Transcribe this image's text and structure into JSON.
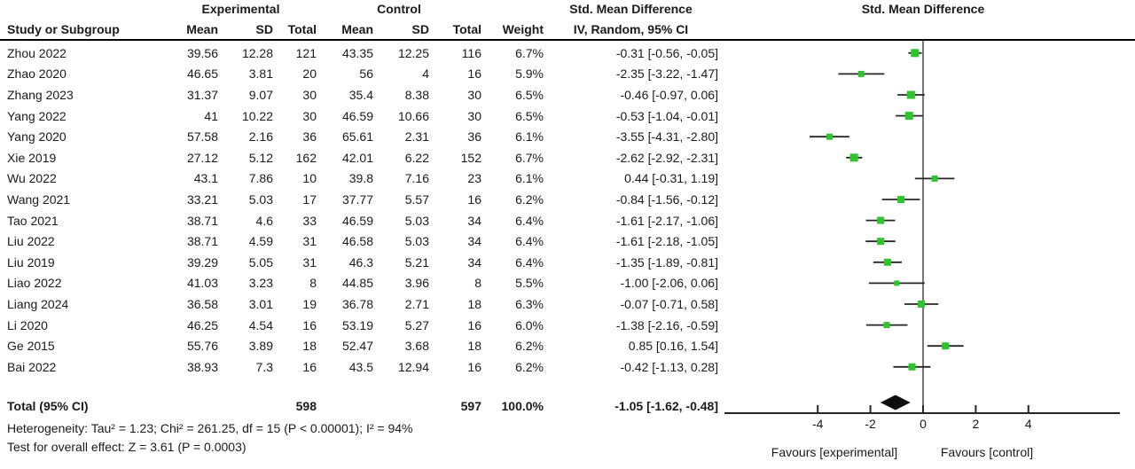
{
  "chart_data": {
    "type": "scatter",
    "subtype": "forest-plot-meta-analysis",
    "header": {
      "experimental": "Experimental",
      "control": "Control",
      "smd": "Std. Mean Difference",
      "method": "IV, Random, 95% CI",
      "cols": {
        "study": "Study or Subgroup",
        "mean": "Mean",
        "sd": "SD",
        "total": "Total",
        "weight": "Weight"
      }
    },
    "studies": [
      {
        "name": "Zhou 2022",
        "exp_mean": "39.56",
        "exp_sd": "12.28",
        "exp_total": "121",
        "ctl_mean": "43.35",
        "ctl_sd": "12.25",
        "ctl_total": "116",
        "weight": "6.7%",
        "ci_text": "-0.31 [-0.56, -0.05]",
        "est": -0.31,
        "lo": -0.56,
        "hi": -0.05,
        "weight_pct": 6.7
      },
      {
        "name": "Zhao 2020",
        "exp_mean": "46.65",
        "exp_sd": "3.81",
        "exp_total": "20",
        "ctl_mean": "56",
        "ctl_sd": "4",
        "ctl_total": "16",
        "weight": "5.9%",
        "ci_text": "-2.35 [-3.22, -1.47]",
        "est": -2.35,
        "lo": -3.22,
        "hi": -1.47,
        "weight_pct": 5.9
      },
      {
        "name": "Zhang 2023",
        "exp_mean": "31.37",
        "exp_sd": "9.07",
        "exp_total": "30",
        "ctl_mean": "35.4",
        "ctl_sd": "8.38",
        "ctl_total": "30",
        "weight": "6.5%",
        "ci_text": "-0.46 [-0.97, 0.06]",
        "est": -0.46,
        "lo": -0.97,
        "hi": 0.06,
        "weight_pct": 6.5
      },
      {
        "name": "Yang 2022",
        "exp_mean": "41",
        "exp_sd": "10.22",
        "exp_total": "30",
        "ctl_mean": "46.59",
        "ctl_sd": "10.66",
        "ctl_total": "30",
        "weight": "6.5%",
        "ci_text": "-0.53 [-1.04, -0.01]",
        "est": -0.53,
        "lo": -1.04,
        "hi": -0.01,
        "weight_pct": 6.5
      },
      {
        "name": "Yang 2020",
        "exp_mean": "57.58",
        "exp_sd": "2.16",
        "exp_total": "36",
        "ctl_mean": "65.61",
        "ctl_sd": "2.31",
        "ctl_total": "36",
        "weight": "6.1%",
        "ci_text": "-3.55 [-4.31, -2.80]",
        "est": -3.55,
        "lo": -4.31,
        "hi": -2.8,
        "weight_pct": 6.1
      },
      {
        "name": "Xie 2019",
        "exp_mean": "27.12",
        "exp_sd": "5.12",
        "exp_total": "162",
        "ctl_mean": "42.01",
        "ctl_sd": "6.22",
        "ctl_total": "152",
        "weight": "6.7%",
        "ci_text": "-2.62 [-2.92, -2.31]",
        "est": -2.62,
        "lo": -2.92,
        "hi": -2.31,
        "weight_pct": 6.7
      },
      {
        "name": "Wu 2022",
        "exp_mean": "43.1",
        "exp_sd": "7.86",
        "exp_total": "10",
        "ctl_mean": "39.8",
        "ctl_sd": "7.16",
        "ctl_total": "23",
        "weight": "6.1%",
        "ci_text": "0.44 [-0.31, 1.19]",
        "est": 0.44,
        "lo": -0.31,
        "hi": 1.19,
        "weight_pct": 6.1
      },
      {
        "name": "Wang 2021",
        "exp_mean": "33.21",
        "exp_sd": "5.03",
        "exp_total": "17",
        "ctl_mean": "37.77",
        "ctl_sd": "5.57",
        "ctl_total": "16",
        "weight": "6.2%",
        "ci_text": "-0.84 [-1.56, -0.12]",
        "est": -0.84,
        "lo": -1.56,
        "hi": -0.12,
        "weight_pct": 6.2
      },
      {
        "name": "Tao 2021",
        "exp_mean": "38.71",
        "exp_sd": "4.6",
        "exp_total": "33",
        "ctl_mean": "46.59",
        "ctl_sd": "5.03",
        "ctl_total": "34",
        "weight": "6.4%",
        "ci_text": "-1.61 [-2.17, -1.06]",
        "est": -1.61,
        "lo": -2.17,
        "hi": -1.06,
        "weight_pct": 6.4
      },
      {
        "name": "Liu 2022",
        "exp_mean": "38.71",
        "exp_sd": "4.59",
        "exp_total": "31",
        "ctl_mean": "46.58",
        "ctl_sd": "5.03",
        "ctl_total": "34",
        "weight": "6.4%",
        "ci_text": "-1.61 [-2.18, -1.05]",
        "est": -1.61,
        "lo": -2.18,
        "hi": -1.05,
        "weight_pct": 6.4
      },
      {
        "name": "Liu 2019",
        "exp_mean": "39.29",
        "exp_sd": "5.05",
        "exp_total": "31",
        "ctl_mean": "46.3",
        "ctl_sd": "5.21",
        "ctl_total": "34",
        "weight": "6.4%",
        "ci_text": "-1.35 [-1.89, -0.81]",
        "est": -1.35,
        "lo": -1.89,
        "hi": -0.81,
        "weight_pct": 6.4
      },
      {
        "name": "Liao 2022",
        "exp_mean": "41.03",
        "exp_sd": "3.23",
        "exp_total": "8",
        "ctl_mean": "44.85",
        "ctl_sd": "3.96",
        "ctl_total": "8",
        "weight": "5.5%",
        "ci_text": "-1.00 [-2.06, 0.06]",
        "est": -1.0,
        "lo": -2.06,
        "hi": 0.06,
        "weight_pct": 5.5
      },
      {
        "name": "Liang 2024",
        "exp_mean": "36.58",
        "exp_sd": "3.01",
        "exp_total": "19",
        "ctl_mean": "36.78",
        "ctl_sd": "2.71",
        "ctl_total": "18",
        "weight": "6.3%",
        "ci_text": "-0.07 [-0.71, 0.58]",
        "est": -0.07,
        "lo": -0.71,
        "hi": 0.58,
        "weight_pct": 6.3
      },
      {
        "name": "Li 2020",
        "exp_mean": "46.25",
        "exp_sd": "4.54",
        "exp_total": "16",
        "ctl_mean": "53.19",
        "ctl_sd": "5.27",
        "ctl_total": "16",
        "weight": "6.0%",
        "ci_text": "-1.38 [-2.16, -0.59]",
        "est": -1.38,
        "lo": -2.16,
        "hi": -0.59,
        "weight_pct": 6.0
      },
      {
        "name": "Ge 2015",
        "exp_mean": "55.76",
        "exp_sd": "3.89",
        "exp_total": "18",
        "ctl_mean": "52.47",
        "ctl_sd": "3.68",
        "ctl_total": "18",
        "weight": "6.2%",
        "ci_text": "0.85 [0.16, 1.54]",
        "est": 0.85,
        "lo": 0.16,
        "hi": 1.54,
        "weight_pct": 6.2
      },
      {
        "name": "Bai 2022",
        "exp_mean": "38.93",
        "exp_sd": "7.3",
        "exp_total": "16",
        "ctl_mean": "43.5",
        "ctl_sd": "12.94",
        "ctl_total": "16",
        "weight": "6.2%",
        "ci_text": "-0.42 [-1.13, 0.28]",
        "est": -0.42,
        "lo": -1.13,
        "hi": 0.28,
        "weight_pct": 6.2
      }
    ],
    "total": {
      "label": "Total (95% CI)",
      "exp_total": "598",
      "ctl_total": "597",
      "weight": "100.0%",
      "ci_text": "-1.05 [-1.62, -0.48]",
      "est": -1.05,
      "lo": -1.62,
      "hi": -0.48
    },
    "footer": {
      "heterogeneity": "Heterogeneity: Tau² = 1.23; Chi² = 261.25, df = 15 (P < 0.00001); I² = 94%",
      "overall_effect": "Test for overall effect: Z = 3.61 (P = 0.0003)"
    },
    "axis": {
      "ticks": [
        -4,
        -2,
        0,
        2,
        4
      ],
      "xlim": [
        -7.5,
        7.5
      ],
      "favours_left": "Favours [experimental]",
      "favours_right": "Favours [control]"
    },
    "colors": {
      "marker": "#2dc42d",
      "ci_line": "#262626",
      "zero_line": "#4a4a4a",
      "axis_line": "#262626",
      "diamond": "#0d0d0d",
      "rule": "#000000"
    }
  }
}
